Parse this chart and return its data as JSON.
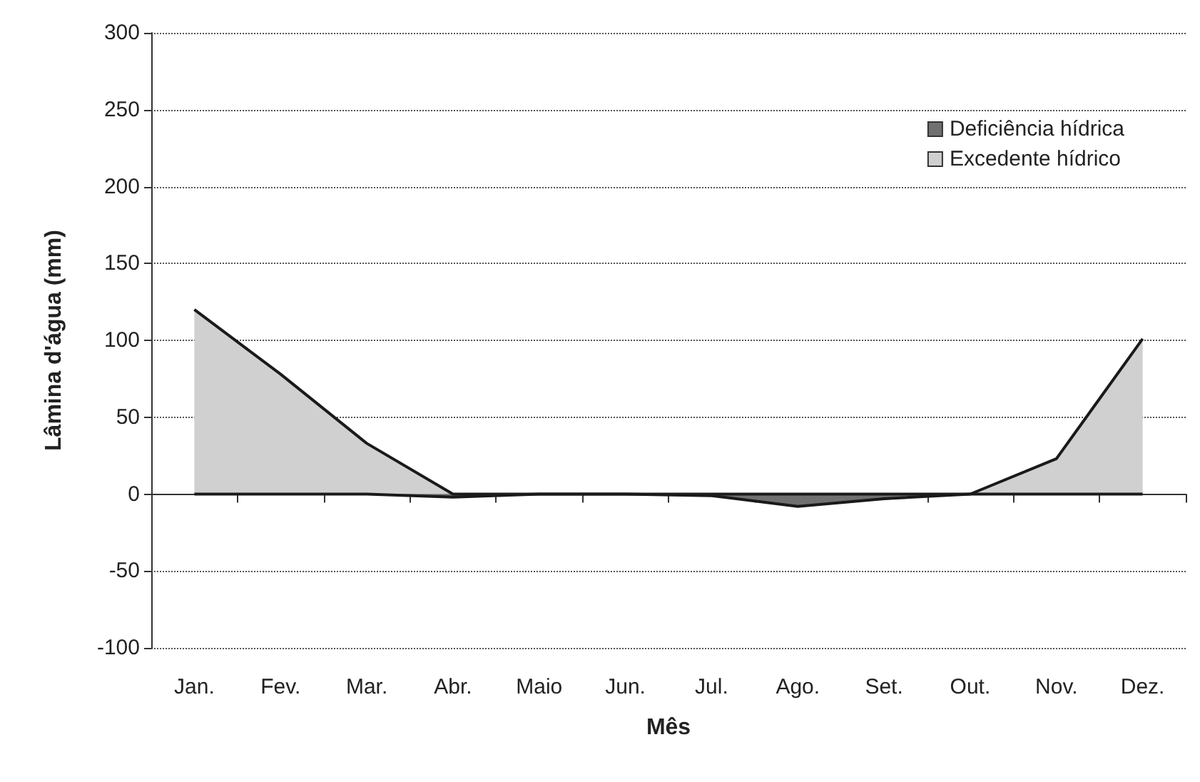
{
  "chart_data": {
    "type": "area",
    "xlabel": "Mês",
    "ylabel": "Lâmina d'água (mm)",
    "categories": [
      "Jan.",
      "Fev.",
      "Mar.",
      "Abr.",
      "Maio",
      "Jun.",
      "Jul.",
      "Ago.",
      "Set.",
      "Out.",
      "Nov.",
      "Dez."
    ],
    "series": [
      {
        "name": "Deficiência hídrica",
        "color": "#707070",
        "values": [
          0,
          0,
          0,
          -2,
          0,
          0,
          -1,
          -8,
          -3,
          0,
          0,
          0
        ]
      },
      {
        "name": "Excedente hídrico",
        "color": "#d0d0d0",
        "values": [
          120,
          78,
          33,
          0,
          0,
          0,
          0,
          0,
          0,
          0,
          23,
          101
        ]
      }
    ],
    "ylim": [
      -100,
      300
    ],
    "yticks": [
      -100,
      -50,
      0,
      50,
      100,
      150,
      200,
      250,
      300
    ],
    "grid": "y",
    "legend": "top right"
  }
}
